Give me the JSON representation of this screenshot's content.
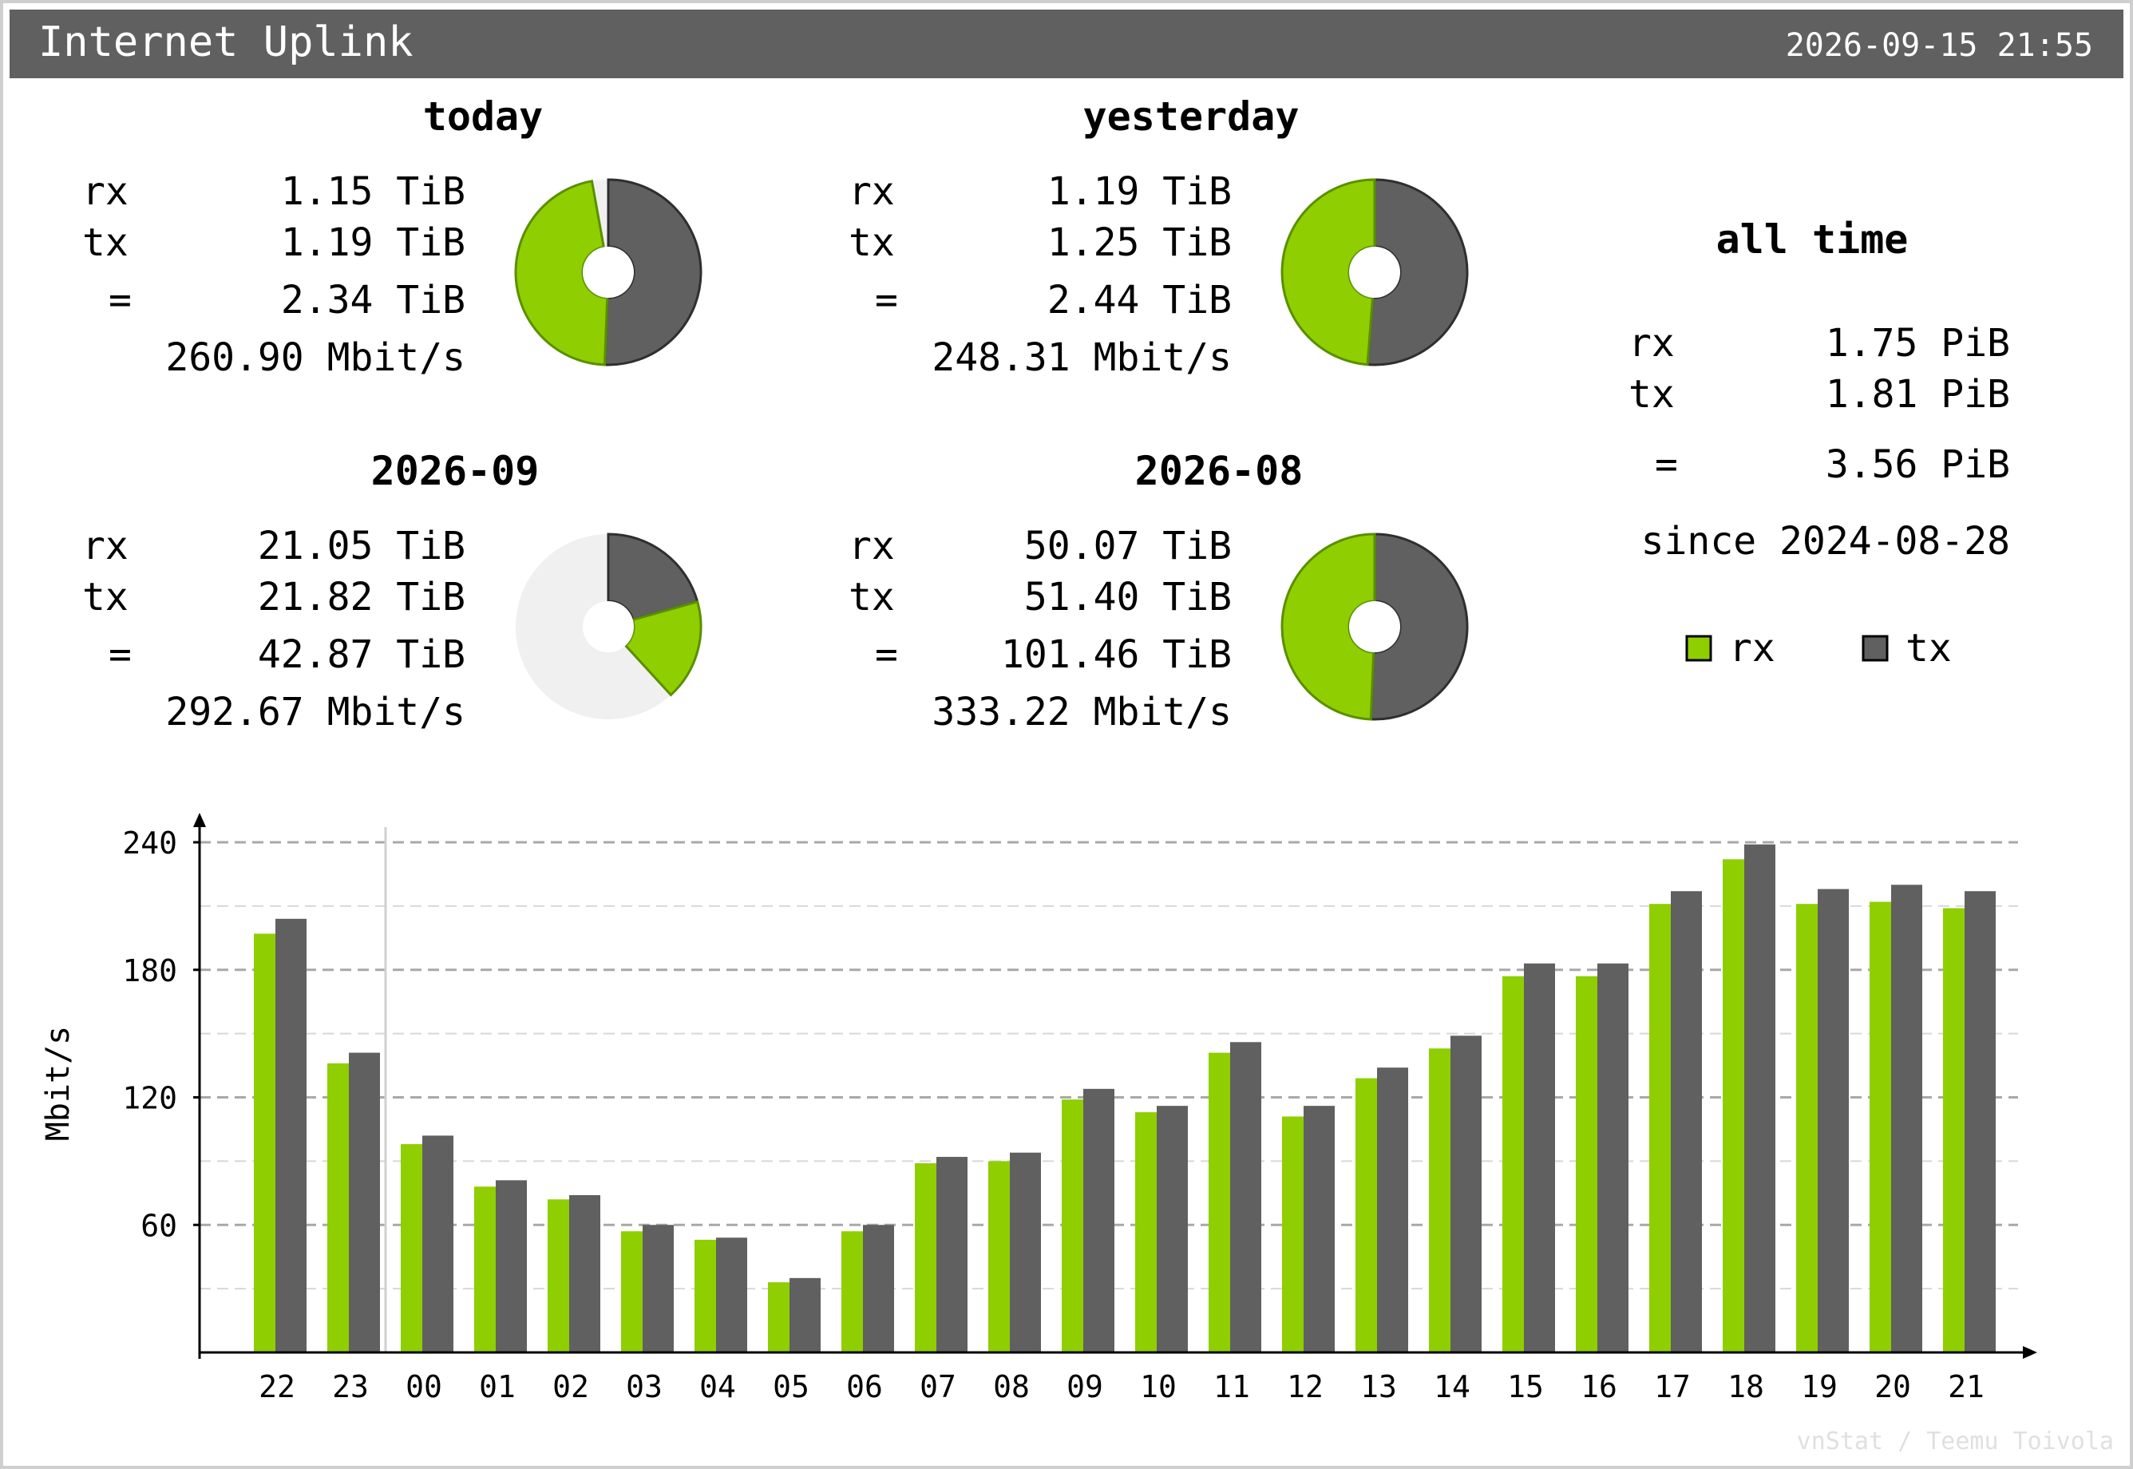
{
  "header": {
    "title": "Internet Uplink",
    "timestamp": "2026-09-15 21:55"
  },
  "colors": {
    "rx": "#8fce00",
    "tx": "#606060",
    "header_bg": "#606060",
    "unused": "#f0f0f0"
  },
  "panels": [
    {
      "title": "today",
      "rx_label": "rx",
      "rx_value": "1.15 TiB",
      "tx_label": "tx",
      "tx_value": "1.19 TiB",
      "eq_label": "=",
      "total_value": "2.34 TiB",
      "rate": "260.90 Mbit/s",
      "pie": {
        "rx_fraction": 0.4655,
        "tx_fraction": 0.5062
      }
    },
    {
      "title": "yesterday",
      "rx_label": "rx",
      "rx_value": "1.19 TiB",
      "tx_label": "tx",
      "tx_value": "1.25 TiB",
      "eq_label": "=",
      "total_value": "2.44 TiB",
      "rate": "248.31 Mbit/s",
      "pie": {
        "rx_fraction": 0.4877,
        "tx_fraction": 0.5123
      }
    },
    {
      "title": "2026-09",
      "rx_label": "rx",
      "rx_value": "21.05 TiB",
      "tx_label": "tx",
      "tx_value": "21.82 TiB",
      "eq_label": "=",
      "total_value": "42.87 TiB",
      "rate": "292.67 Mbit/s",
      "pie": {
        "rx_fraction": 0.1753,
        "tx_fraction": 0.2065
      }
    },
    {
      "title": "2026-08",
      "rx_label": "rx",
      "rx_value": "50.07 TiB",
      "tx_label": "tx",
      "tx_value": "51.40 TiB",
      "eq_label": "=",
      "total_value": "101.46 TiB",
      "rate": "333.22 Mbit/s",
      "pie": {
        "rx_fraction": 0.4935,
        "tx_fraction": 0.5065
      }
    }
  ],
  "alltime": {
    "title": "all time",
    "rx_label": "rx",
    "rx_value": "1.75 PiB",
    "tx_label": "tx",
    "tx_value": "1.81 PiB",
    "eq_label": "=",
    "total_value": "3.56 PiB",
    "since": "since 2024-08-28"
  },
  "legend": {
    "rx": "rx",
    "tx": "tx"
  },
  "chart_data": {
    "type": "bar",
    "ylabel": "Mbit/s",
    "ylim": [
      0,
      240
    ],
    "yticks": [
      "60",
      "120",
      "180",
      "240"
    ],
    "grid": true,
    "categories": [
      "22",
      "23",
      "00",
      "01",
      "02",
      "03",
      "04",
      "05",
      "06",
      "07",
      "08",
      "09",
      "10",
      "11",
      "12",
      "13",
      "14",
      "15",
      "16",
      "17",
      "18",
      "19",
      "20",
      "21"
    ],
    "series": [
      {
        "name": "rx",
        "values": [
          197,
          136,
          98,
          78,
          72,
          57,
          53,
          33,
          57,
          89,
          90,
          119,
          113,
          141,
          111,
          129,
          143,
          177,
          177,
          211,
          232,
          211,
          212,
          209
        ]
      },
      {
        "name": "tx",
        "values": [
          204,
          141,
          102,
          81,
          74,
          60,
          54,
          35,
          60,
          92,
          94,
          124,
          116,
          146,
          116,
          134,
          149,
          183,
          183,
          217,
          239,
          218,
          220,
          217
        ]
      }
    ]
  },
  "footer": "vnStat / Teemu Toivola"
}
